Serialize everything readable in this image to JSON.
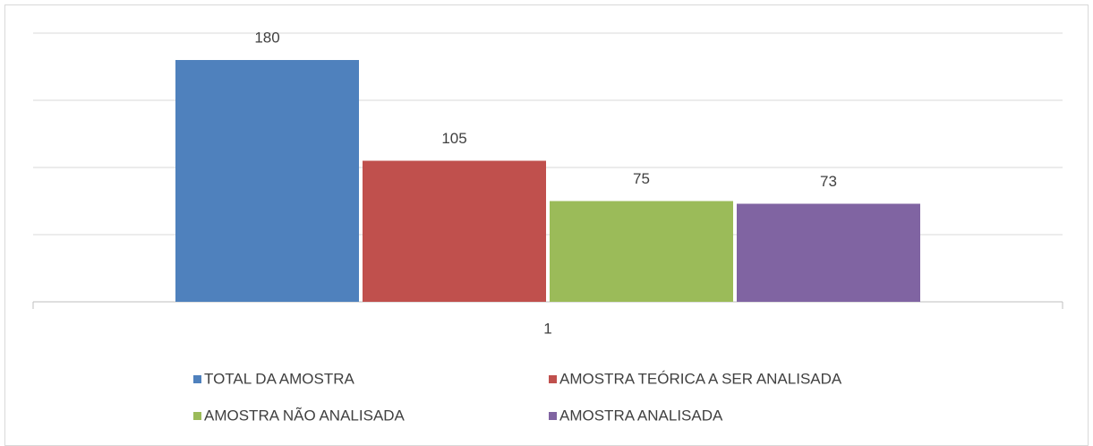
{
  "chart_data": {
    "type": "bar",
    "categories": [
      "1"
    ],
    "series": [
      {
        "name": "TOTAL DA AMOSTRA",
        "color": "#4f81bd",
        "values": [
          180
        ]
      },
      {
        "name": "AMOSTRA TEÓRICA A SER ANALISADA",
        "color": "#c0504d",
        "values": [
          105
        ]
      },
      {
        "name": "AMOSTRA NÃO ANALISADA",
        "color": "#9bbb59",
        "values": [
          75
        ]
      },
      {
        "name": "AMOSTRA ANALISADA",
        "color": "#8064a2",
        "values": [
          73
        ]
      }
    ],
    "ylim": [
      0,
      200
    ],
    "yticks": [
      0,
      50,
      100,
      150,
      200
    ],
    "grid": true,
    "legend": "bottom"
  }
}
